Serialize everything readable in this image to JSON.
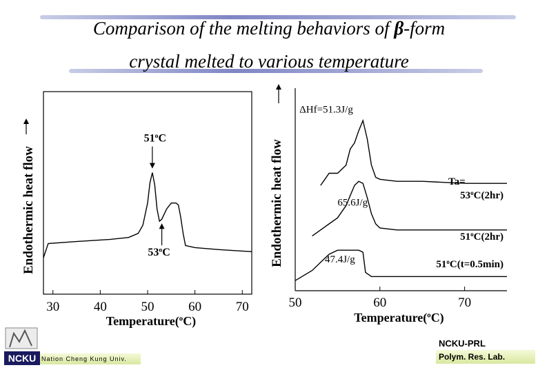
{
  "title": {
    "line1_a": "Comparison of the melting behaviors of ",
    "line1_beta": "β",
    "line1_b": "-form",
    "line2": "crystal melted to various temperature"
  },
  "chart_data": [
    {
      "type": "line",
      "xlabel": "Temperature(oC)",
      "ylabel": "Endothermic heat flow",
      "xticks": [
        30,
        40,
        50,
        60,
        70
      ],
      "xlim": [
        28,
        72
      ],
      "ylim": [
        0,
        1
      ],
      "series": [
        {
          "x": [
            28,
            29,
            35,
            42,
            46,
            48,
            49,
            50,
            50.5,
            51,
            51.5,
            52,
            52.5,
            53,
            54,
            55,
            56,
            56.5,
            57,
            57.5,
            58,
            60,
            65,
            72
          ],
          "y": [
            0.18,
            0.25,
            0.26,
            0.27,
            0.28,
            0.3,
            0.34,
            0.45,
            0.55,
            0.6,
            0.54,
            0.42,
            0.36,
            0.37,
            0.42,
            0.45,
            0.45,
            0.44,
            0.38,
            0.3,
            0.24,
            0.23,
            0.22,
            0.21
          ]
        }
      ],
      "annotations": [
        {
          "text": "51oC",
          "x": 51,
          "y": 0.6
        },
        {
          "text": "53oC",
          "x": 53,
          "y": 0.37
        }
      ]
    },
    {
      "type": "line",
      "xlabel": "Temperature(oC)",
      "ylabel": "Endothermic heat flow",
      "xticks": [
        50,
        60,
        70
      ],
      "xlim": [
        50,
        75
      ],
      "ylim": [
        0,
        1
      ],
      "legend_title": "Ta=",
      "series": [
        {
          "name": "53oC(2hr)",
          "x": [
            53,
            53.5,
            54,
            55,
            56,
            56.5,
            57,
            57.5,
            58,
            58.5,
            59,
            59.5,
            60,
            62,
            65,
            70,
            75
          ],
          "y": [
            0.52,
            0.55,
            0.58,
            0.58,
            0.62,
            0.7,
            0.73,
            0.79,
            0.84,
            0.75,
            0.62,
            0.56,
            0.55,
            0.54,
            0.54,
            0.53,
            0.53
          ]
        },
        {
          "name": "51oC(2hr)",
          "x": [
            52,
            53,
            54,
            55,
            56,
            56.5,
            57,
            57.5,
            58,
            58.5,
            59,
            59.5,
            60,
            62,
            65,
            70,
            75
          ],
          "y": [
            0.27,
            0.3,
            0.33,
            0.36,
            0.42,
            0.47,
            0.52,
            0.54,
            0.53,
            0.46,
            0.38,
            0.33,
            0.31,
            0.3,
            0.3,
            0.3,
            0.3
          ]
        },
        {
          "name": "51oC(t=0.5min)",
          "x": [
            50,
            52,
            53,
            54,
            55,
            56,
            57,
            57.5,
            58,
            58.3,
            59,
            62,
            65,
            70,
            75
          ],
          "y": [
            0.05,
            0.1,
            0.14,
            0.18,
            0.2,
            0.2,
            0.2,
            0.2,
            0.19,
            0.09,
            0.07,
            0.07,
            0.07,
            0.07,
            0.07
          ]
        }
      ],
      "annotations": [
        {
          "text": "ΔHf=51.3J/g",
          "x": 50.5,
          "y": 0.88
        },
        {
          "text": "65.6J/g",
          "x": 55,
          "y": 0.42
        },
        {
          "text": "47.4J/g",
          "x": 53.5,
          "y": 0.14
        }
      ]
    }
  ],
  "footer": {
    "left_label": "Nation Cheng Kung Univ.",
    "right_top": "NCKU-PRL",
    "right_bottom": "Polym. Res. Lab.",
    "logo_text": "NCKU"
  },
  "colors": {
    "title_bar": "#7f86c4",
    "footer_bg": "#e6f0b8",
    "footer_accent": "#d4b200"
  }
}
